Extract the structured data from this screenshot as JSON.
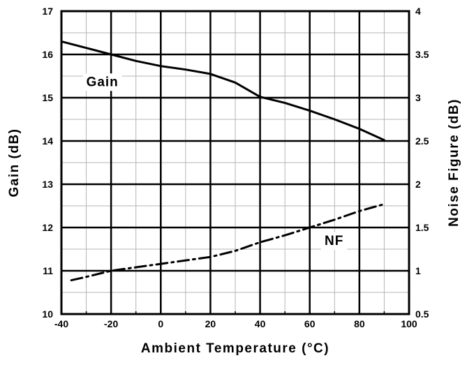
{
  "chart_data": {
    "type": "line",
    "title": "",
    "xlabel": "Ambient Temperature (°C)",
    "ylabel": "Gain (dB)",
    "y2label": "Noise Figure (dB)",
    "xlim": [
      -40,
      100
    ],
    "ylim": [
      10,
      17
    ],
    "y2lim": [
      0.5,
      4
    ],
    "x_ticks": [
      "-40",
      "-20",
      "0",
      "20",
      "40",
      "60",
      "80",
      "100"
    ],
    "y_ticks": [
      "10",
      "11",
      "12",
      "13",
      "14",
      "15",
      "16",
      "17"
    ],
    "y2_ticks": [
      "0.5",
      "1",
      "1.5",
      "2",
      "2.5",
      "3",
      "3.5",
      "4"
    ],
    "grid": true,
    "series": [
      {
        "name": "Gain",
        "axis": "left",
        "style": "solid",
        "x": [
          -40,
          -30,
          -20,
          -10,
          0,
          10,
          20,
          30,
          40,
          50,
          60,
          70,
          80,
          90
        ],
        "y": [
          16.3,
          16.15,
          16.0,
          15.85,
          15.73,
          15.65,
          15.55,
          15.35,
          15.02,
          14.88,
          14.7,
          14.5,
          14.28,
          14.02
        ]
      },
      {
        "name": "NF",
        "axis": "right",
        "style": "dashed",
        "x": [
          -36,
          -30,
          -20,
          -10,
          0,
          10,
          20,
          30,
          40,
          50,
          60,
          70,
          80,
          90
        ],
        "y": [
          0.89,
          0.93,
          1.0,
          1.04,
          1.08,
          1.12,
          1.16,
          1.23,
          1.33,
          1.41,
          1.5,
          1.59,
          1.69,
          1.77
        ]
      }
    ],
    "annotations": [
      {
        "text": "Gain",
        "x": -30,
        "y": 15.27
      },
      {
        "text": "NF",
        "x": 66,
        "y": 11.6
      }
    ]
  }
}
